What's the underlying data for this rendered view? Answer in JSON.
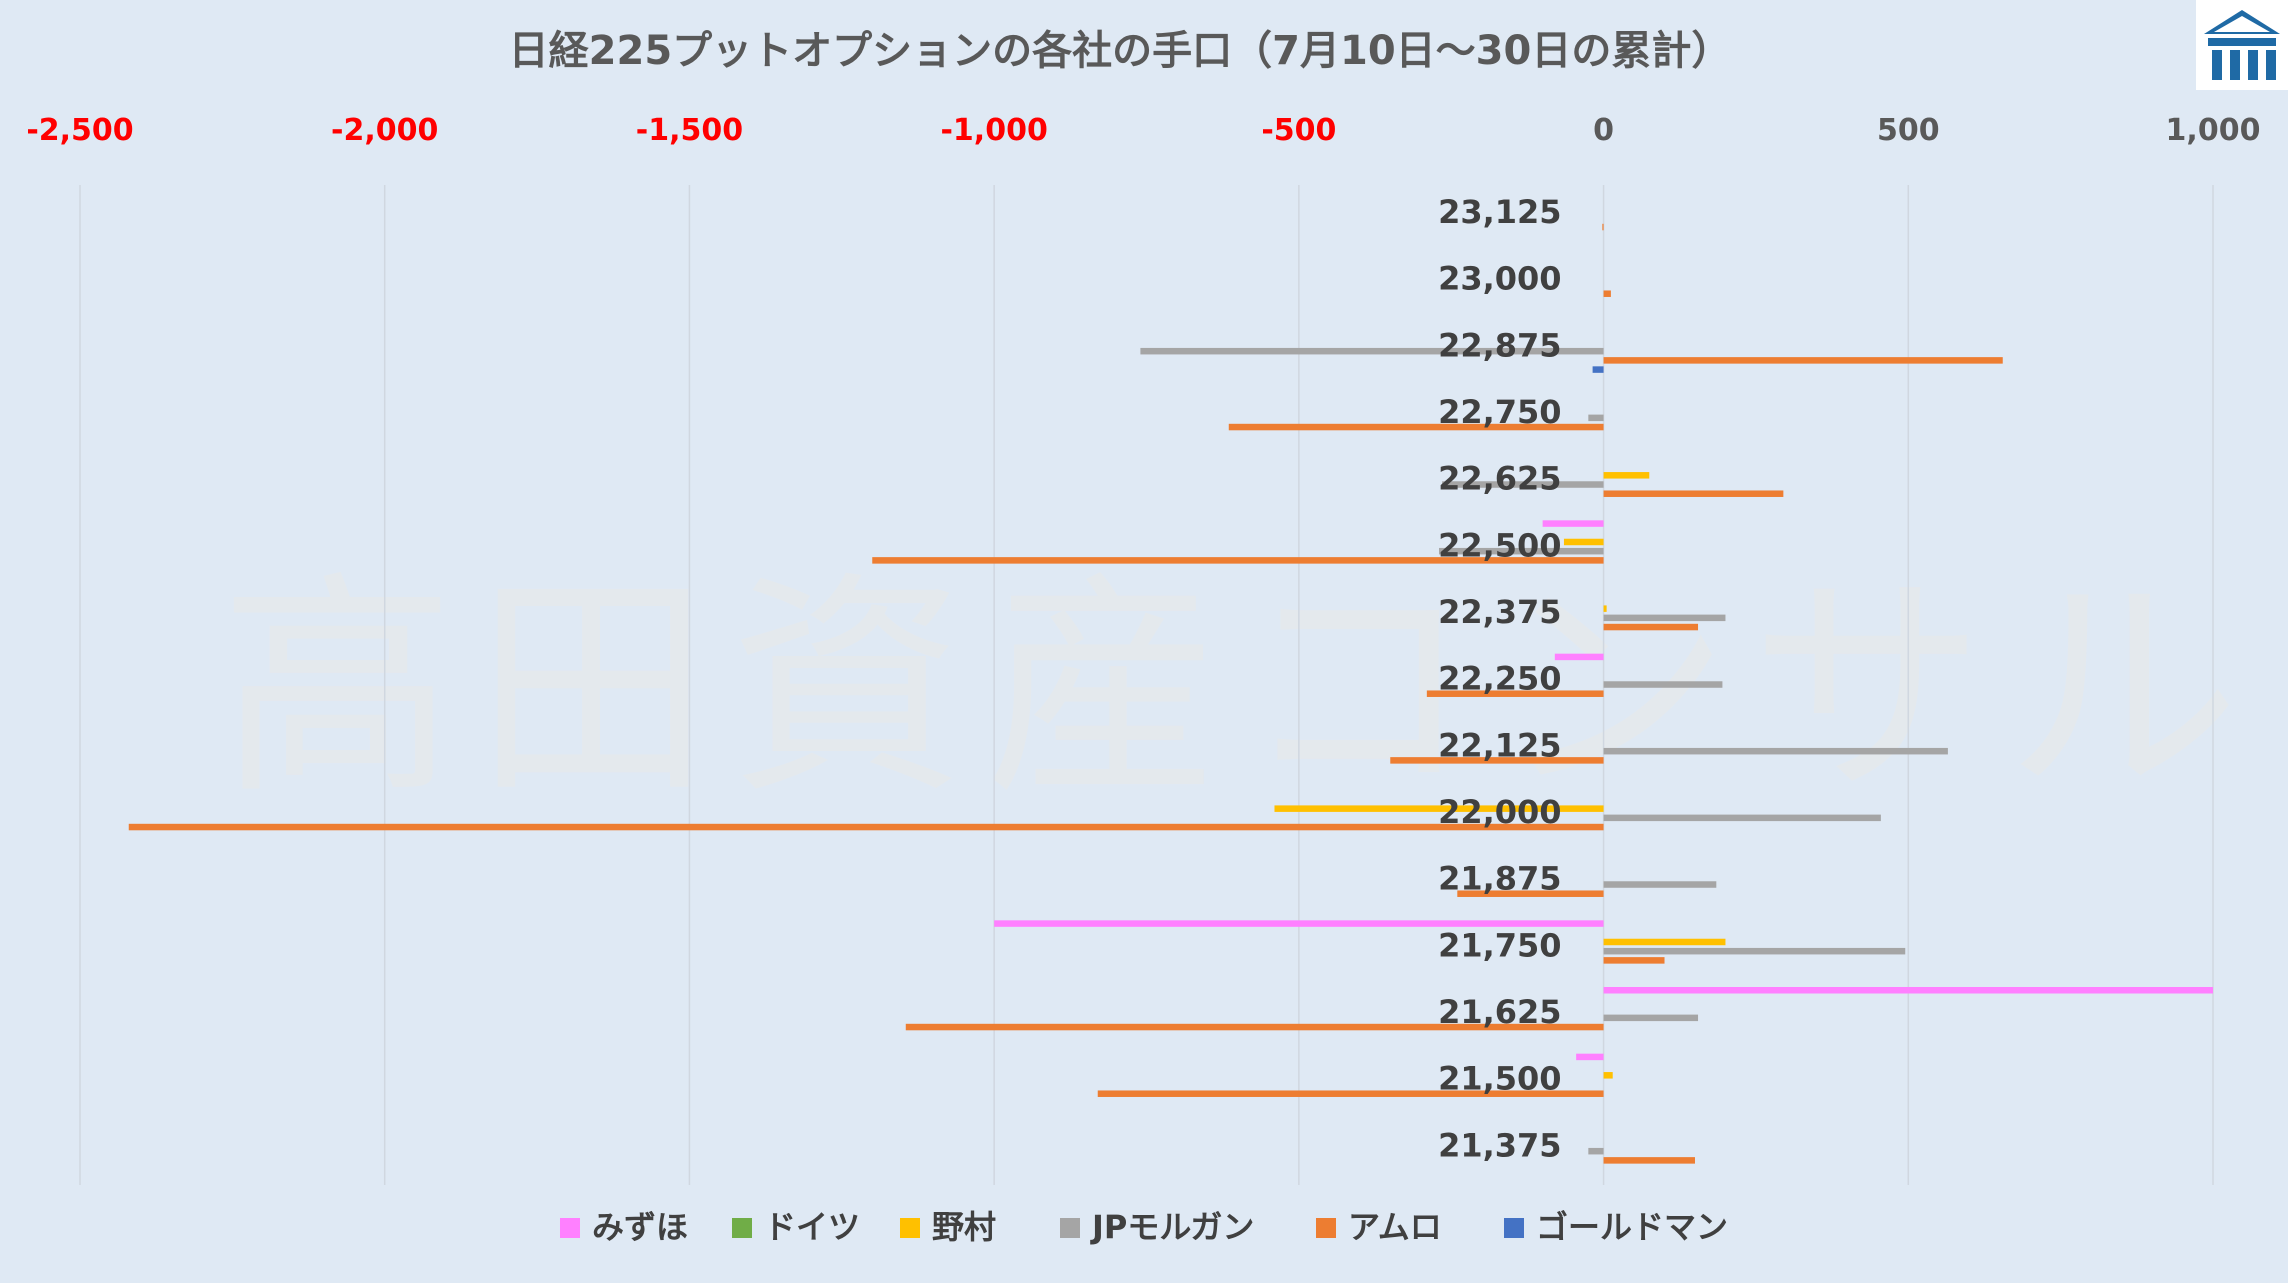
{
  "chart_data": {
    "type": "bar",
    "orientation": "horizontal",
    "title": "日経225プットオプションの各社の手口（7月10日～30日の累計）",
    "watermark": "高田資産コンサル",
    "logo_icon": "takada-logo-icon",
    "xlim": [
      -2500,
      1000
    ],
    "xticks": [
      -2500,
      -2000,
      -1500,
      -1000,
      -500,
      0,
      500,
      1000
    ],
    "xtick_labels": [
      "-2,500",
      "-2,000",
      "-1,500",
      "-1,000",
      "-500",
      "0",
      "500",
      "1,000"
    ],
    "negative_tick_color": "#ff0000",
    "grid": true,
    "legend_position": "bottom",
    "categories": [
      "23,125",
      "23,000",
      "22,875",
      "22,750",
      "22,625",
      "22,500",
      "22,375",
      "22,250",
      "22,125",
      "22,000",
      "21,875",
      "21,750",
      "21,625",
      "21,500",
      "21,375"
    ],
    "series": [
      {
        "name": "みずほ",
        "color": "#ff80ff",
        "values": [
          0,
          0,
          0,
          0,
          0,
          -100,
          0,
          -80,
          0,
          0,
          0,
          -1000,
          1000,
          -45,
          0
        ]
      },
      {
        "name": "ドイツ",
        "color": "#70ad47",
        "values": [
          0,
          0,
          0,
          0,
          0,
          0,
          0,
          0,
          0,
          0,
          0,
          0,
          0,
          0,
          0
        ]
      },
      {
        "name": "野村",
        "color": "#ffc000",
        "values": [
          0,
          0,
          0,
          0,
          75,
          -65,
          5,
          0,
          0,
          -540,
          0,
          200,
          0,
          15,
          0
        ]
      },
      {
        "name": "JPモルガン",
        "color": "#a5a5a5",
        "values": [
          0,
          0,
          -760,
          -25,
          -265,
          -270,
          200,
          195,
          565,
          455,
          185,
          495,
          155,
          0,
          -25
        ]
      },
      {
        "name": "アムロ",
        "color": "#ed7d31",
        "values": [
          -2,
          12,
          655,
          -615,
          295,
          -1200,
          155,
          -290,
          -350,
          -2420,
          -240,
          100,
          -1145,
          -830,
          150
        ]
      },
      {
        "name": "ゴールドマン",
        "color": "#4472c4",
        "values": [
          0,
          0,
          -18,
          0,
          0,
          0,
          0,
          0,
          0,
          0,
          0,
          0,
          0,
          0,
          0
        ]
      }
    ],
    "extra_values_note": ""
  }
}
